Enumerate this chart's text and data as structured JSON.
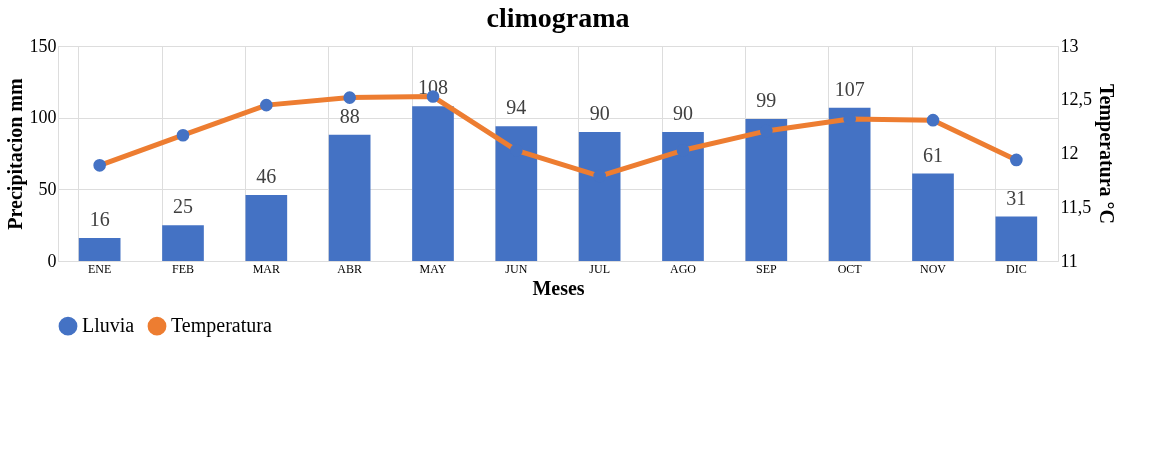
{
  "chart_data": {
    "type": "bar",
    "title": "climograma",
    "xlabel": "Meses",
    "ylabel": "Precipitacion mm",
    "y2label": "Temperatura °C",
    "categories": [
      "ENE",
      "FEB",
      "MAR",
      "ABR",
      "MAY",
      "JUN",
      "JUL",
      "AGO",
      "SEP",
      "OCT",
      "NOV",
      "DIC"
    ],
    "series": [
      {
        "name": "Lluvia",
        "color": "#4472c4",
        "values": [
          16,
          25,
          46,
          88,
          108,
          94,
          90,
          90,
          99,
          107,
          61,
          31
        ],
        "value_labels": [
          "16",
          "25",
          "46",
          "88",
          "108",
          "94",
          "90",
          "90",
          "99",
          "107",
          "61",
          "31"
        ]
      },
      {
        "name": "Temperatura",
        "type": "line",
        "axis": "y2",
        "color": "#ed7d31",
        "marker": "circle",
        "values": [
          11.89,
          12.17,
          12.45,
          12.52,
          12.53,
          12.03,
          11.79,
          12.03,
          12.21,
          12.32,
          12.31,
          11.94
        ]
      }
    ],
    "ylim": [
      0,
      150
    ],
    "yticks": [
      0,
      50,
      100,
      150
    ],
    "y2lim": [
      11,
      13
    ],
    "y2ticks": [
      11,
      {
        "value": 11.5,
        "label": "11,5"
      },
      12,
      {
        "value": 12.5,
        "label": "12,5"
      },
      13
    ],
    "grid": true,
    "legend": "bottom"
  }
}
